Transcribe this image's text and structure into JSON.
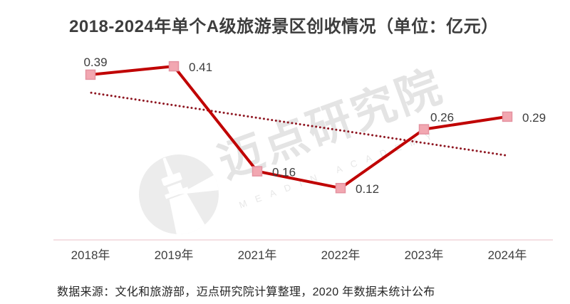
{
  "title": {
    "text": "2018-2024年单个A级旅游景区创收情况（单位：亿元）"
  },
  "source_note": "数据来源：文化和旅游部，迈点研究院计算整理，2020 年数据未统计公布",
  "watermark": {
    "text": "迈点研究院",
    "subtext": "MEADIN ACADEMY",
    "logo": "tower-icon"
  },
  "colors": {
    "line": "#c00000",
    "marker_fill": "#f2a7b1",
    "marker_stroke": "#e492a0",
    "trend": "#8f1722",
    "axis_line": "#f4dfe3",
    "label_text": "#3d3d3d",
    "tick_text": "#3f3f3f",
    "watermark": "#e4e4e4"
  },
  "chart_data": {
    "type": "line",
    "title": "2018-2024年单个A级旅游景区创收情况（单位：亿元）",
    "categories": [
      "2018年",
      "2019年",
      "2021年",
      "2022年",
      "2023年",
      "2024年"
    ],
    "values": [
      0.39,
      0.41,
      0.16,
      0.12,
      0.26,
      0.29
    ],
    "data_labels": [
      "0.39",
      "0.41",
      "0.16",
      "0.12",
      "0.26",
      "0.29"
    ],
    "label_positions": [
      "above",
      "right",
      "right",
      "right",
      "above-right",
      "right"
    ],
    "trendline": {
      "style": "dotted",
      "start_value": 0.347,
      "end_value": 0.198
    },
    "xlabel": "",
    "ylabel": "",
    "ylim": [
      0,
      0.45
    ],
    "grid": false,
    "legend": false,
    "note": "2020年数据未统计公布"
  }
}
